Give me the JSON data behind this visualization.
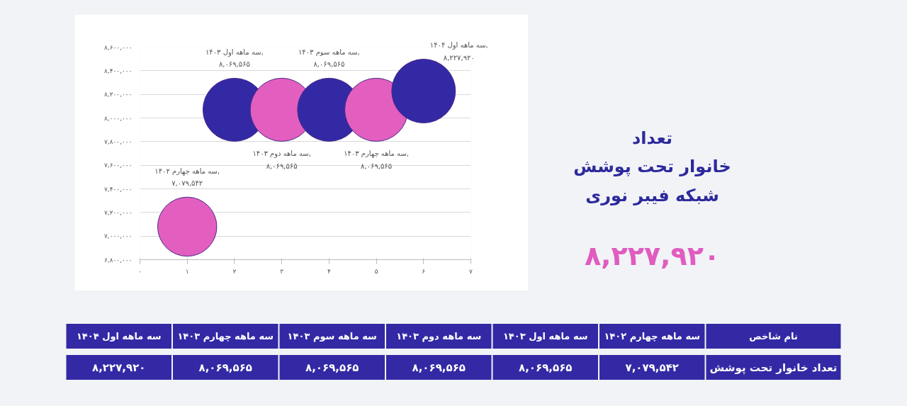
{
  "chart_data": [
    {
      "type": "bubble",
      "x": [
        1,
        2,
        3,
        4,
        5,
        6
      ],
      "values": [
        7079542,
        8069565,
        8069565,
        8069565,
        8069565,
        8227920
      ],
      "sizes": [
        0.86,
        0.98,
        0.98,
        0.98,
        0.98,
        1
      ],
      "colors": [
        "#e35fbf",
        "#3329a5",
        "#e35fbf",
        "#3329a5",
        "#e35fbf",
        "#3329a5"
      ],
      "value_labels": [
        "سه ماهه چهارم ۱۴۰۲,\n۷,۰۷۹,۵۴۲",
        "سه ماهه اول ۱۴۰۳,\n۸,۰۶۹,۵۶۵",
        "سه ماهه دوم ۱۴۰۳,\n۸,۰۶۹,۵۶۵",
        "سه ماهه سوم ۱۴۰۳,\n۸,۰۶۹,۵۶۵",
        "سه ماهه چهارم ۱۴۰۳,\n۸,۰۶۹,۵۶۵",
        "سه ماهه اول ۱۴۰۴,\n۸,۲۲۷,۹۲۰"
      ],
      "xlim": [
        0,
        7
      ],
      "ylim": [
        6800000,
        8600000
      ],
      "xticks": [
        {
          "value": 0,
          "label": "۰"
        },
        {
          "value": 1,
          "label": "۱"
        },
        {
          "value": 2,
          "label": "۲"
        },
        {
          "value": 3,
          "label": "۳"
        },
        {
          "value": 4,
          "label": "۴"
        },
        {
          "value": 5,
          "label": "۵"
        },
        {
          "value": 6,
          "label": "۶"
        },
        {
          "value": 7,
          "label": "۷"
        }
      ],
      "yticks": [
        {
          "value": 6800000,
          "label": "۶,۸۰۰,۰۰۰"
        },
        {
          "value": 7000000,
          "label": "۷,۰۰۰,۰۰۰"
        },
        {
          "value": 7200000,
          "label": "۷,۲۰۰,۰۰۰"
        },
        {
          "value": 7400000,
          "label": "۷,۴۰۰,۰۰۰"
        },
        {
          "value": 7600000,
          "label": "۷,۶۰۰,۰۰۰"
        },
        {
          "value": 7800000,
          "label": "۷,۸۰۰,۰۰۰"
        },
        {
          "value": 8000000,
          "label": "۸,۰۰۰,۰۰۰"
        },
        {
          "value": 8200000,
          "label": "۸,۲۰۰,۰۰۰"
        },
        {
          "value": 8400000,
          "label": "۸,۴۰۰,۰۰۰"
        },
        {
          "value": 8600000,
          "label": "۸,۶۰۰,۰۰۰"
        }
      ],
      "grid": "y"
    },
    {
      "type": "other",
      "title": "تعداد\nخانوار تحت پوشش\nشبکه فیبر نوری",
      "annotations": [
        "۸,۲۲۷,۹۲۰"
      ]
    },
    {
      "type": "other",
      "xlabel": "نام شاخص",
      "ylabel": "تعداد خانوار تحت پوشش",
      "color": "#3329a5",
      "categories": [
        "سه ماهه اول ۱۴۰۴",
        "سه ماهه چهارم ۱۴۰۳",
        "سه ماهه سوم ۱۴۰۳",
        "سه ماهه دوم ۱۴۰۳",
        "سه ماهه اول ۱۴۰۳",
        "سه ماهه چهارم ۱۴۰۲"
      ],
      "value_labels": [
        "۸,۲۲۷,۹۲۰",
        "۸,۰۶۹,۵۶۵",
        "۸,۰۶۹,۵۶۵",
        "۸,۰۶۹,۵۶۵",
        "۸,۰۶۹,۵۶۵",
        "۷,۰۷۹,۵۴۲"
      ]
    }
  ]
}
